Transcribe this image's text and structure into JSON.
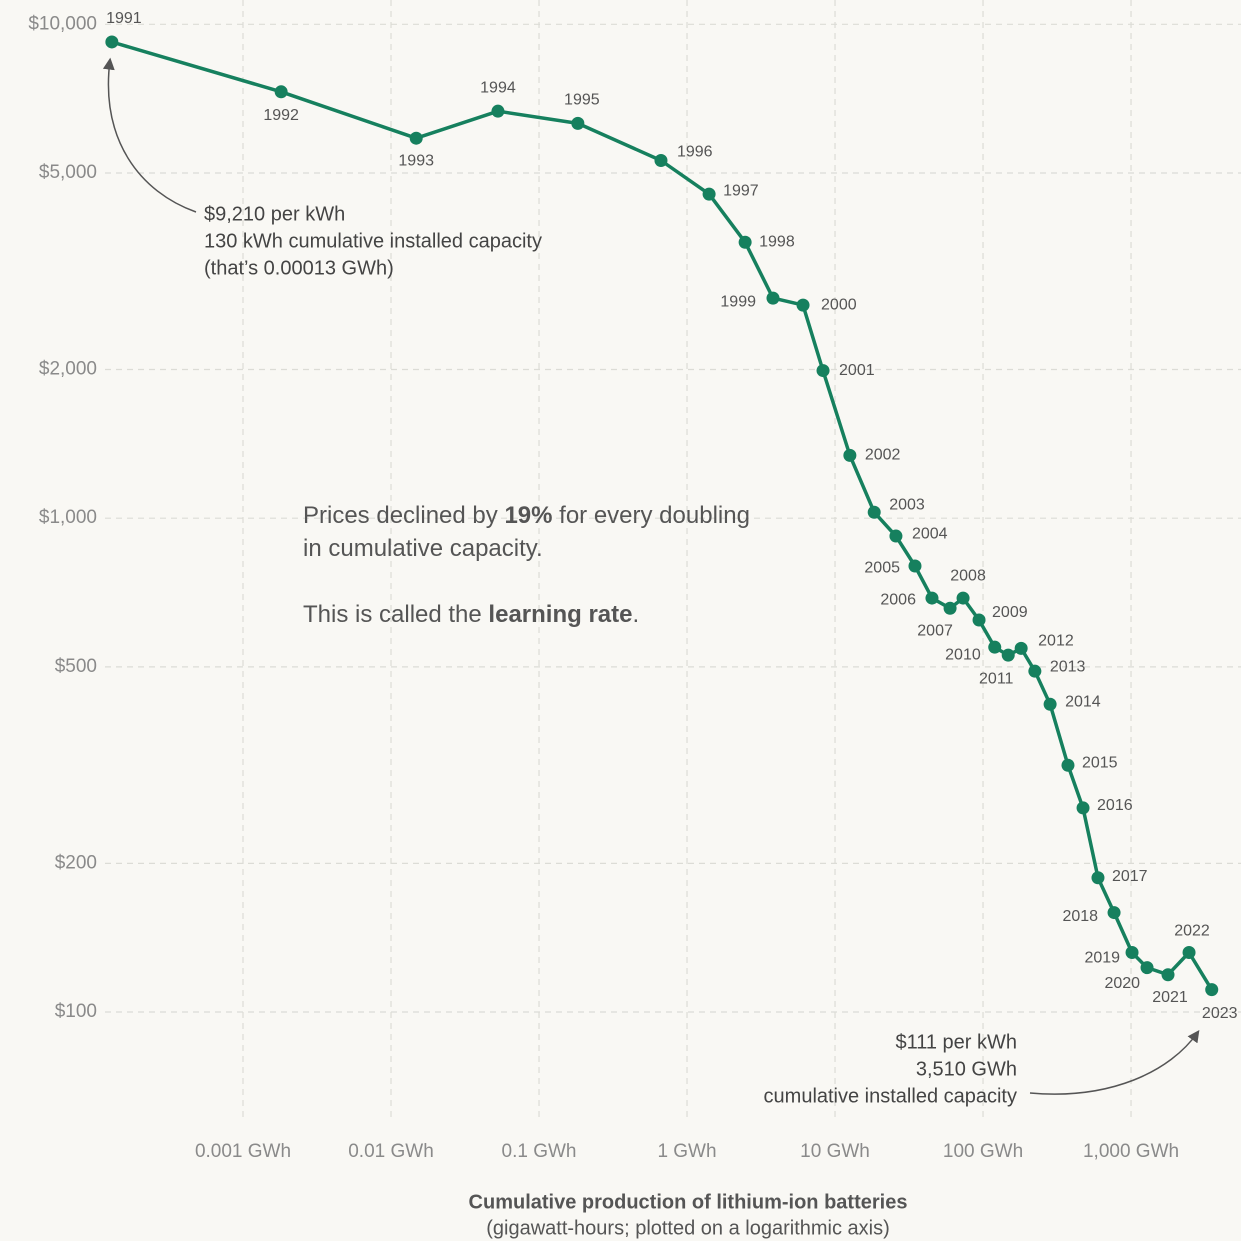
{
  "chart_data": {
    "type": "line",
    "color": "#16805e",
    "xscale": "log",
    "yscale": "log",
    "grid": true,
    "x": [
      0.00013,
      0.00181,
      0.0148,
      0.0528,
      0.183,
      0.667,
      1.41,
      2.47,
      3.81,
      6.08,
      8.3,
      12.6,
      18.4,
      25.8,
      34.7,
      45.2,
      59.9,
      73.3,
      94,
      120,
      148,
      181,
      224,
      284,
      375,
      474,
      598,
      768,
      1016,
      1283,
      1778,
      2466,
      3510
    ],
    "values": [
      9210,
      7300,
      5880,
      6670,
      6300,
      5300,
      4530,
      3620,
      2790,
      2700,
      1990,
      1340,
      1028,
      920,
      800,
      689,
      657,
      689,
      622,
      548,
      528,
      545,
      490,
      420,
      316,
      259,
      187,
      159,
      132,
      123,
      119,
      132,
      111
    ],
    "point_labels": [
      "1991",
      "1992",
      "1993",
      "1994",
      "1995",
      "1996",
      "1997",
      "1998",
      "1999",
      "2000",
      "2001",
      "2002",
      "2003",
      "2004",
      "2005",
      "2006",
      "2007",
      "2008",
      "2009",
      "2010",
      "2011",
      "2012",
      "2013",
      "2014",
      "2015",
      "2016",
      "2017",
      "2018",
      "2019",
      "2020",
      "2021",
      "2022",
      "2023"
    ],
    "xlim": [
      0.0001,
      5500
    ],
    "ylim": [
      60,
      11200
    ],
    "xticks": [
      {
        "value": 0.001,
        "label": "0.001 GWh"
      },
      {
        "value": 0.01,
        "label": "0.01 GWh"
      },
      {
        "value": 0.1,
        "label": "0.1 GWh"
      },
      {
        "value": 1,
        "label": "1 GWh"
      },
      {
        "value": 10,
        "label": "10 GWh"
      },
      {
        "value": 100,
        "label": "100 GWh"
      },
      {
        "value": 1000,
        "label": "1,000 GWh"
      }
    ],
    "yticks": [
      {
        "value": 100,
        "label": "$100"
      },
      {
        "value": 200,
        "label": "$200"
      },
      {
        "value": 500,
        "label": "$500"
      },
      {
        "value": 1000,
        "label": "$1,000"
      },
      {
        "value": 2000,
        "label": "$2,000"
      },
      {
        "value": 5000,
        "label": "$5,000"
      },
      {
        "value": 10000,
        "label": "$10,000"
      }
    ],
    "x_label": "Cumulative production of lithium-ion batteries",
    "x_sublabel": "(gigawatt-hours; plotted on a logarithmic axis)",
    "annotation_start": [
      "$9,210 per kWh",
      "130 kWh cumulative installed capacity",
      "(that’s 0.00013 GWh)"
    ],
    "annotation_end": [
      "$111 per kWh",
      "3,510 GWh",
      "cumulative installed capacity"
    ],
    "message": [
      [
        "Prices declined by ",
        "19%",
        " for every doubling"
      ],
      [
        "in cumulative capacity."
      ],
      [
        "This is called the ",
        "learning rate",
        "."
      ]
    ]
  }
}
